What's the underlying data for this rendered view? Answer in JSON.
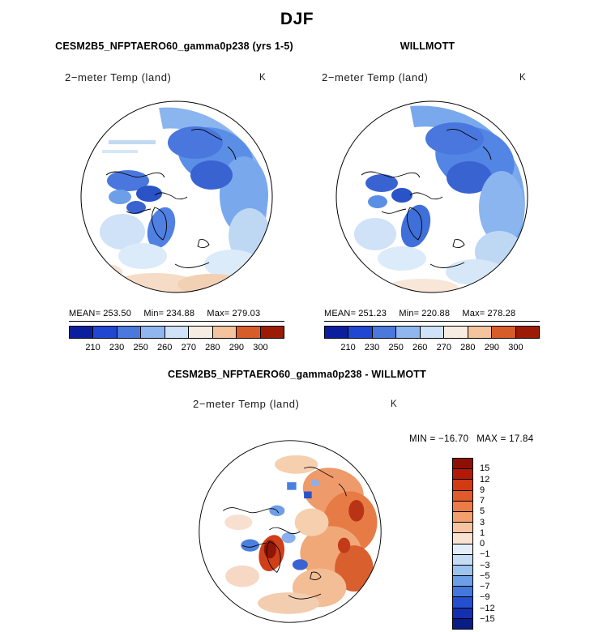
{
  "page": {
    "title": "DJF"
  },
  "model_panel": {
    "header": "CESM2B5_NFPTAERO60_gamma0p238 (yrs 1-5)",
    "subtitle": "2−meter Temp (land)",
    "units": "K",
    "mean_label": "MEAN=",
    "mean": "253.50",
    "min_label": "Min=",
    "min": "234.88",
    "max_label": "Max=",
    "max": "279.03"
  },
  "obs_panel": {
    "header": "WILLMOTT",
    "subtitle": "2−meter Temp (land)",
    "units": "K",
    "mean_label": "MEAN=",
    "mean": "251.23",
    "min_label": "Min=",
    "min": "220.88",
    "max_label": "Max=",
    "max": "278.28"
  },
  "diff_panel": {
    "header": "CESM2B5_NFPTAERO60_gamma0p238 - WILLMOTT",
    "subtitle": "2−meter Temp (land)",
    "units": "K",
    "min_label": "MIN = ",
    "min": "−16.70",
    "max_label": "MAX = ",
    "max": "17.84"
  },
  "colorbar_abs": {
    "tick_labels": [
      "210",
      "230",
      "250",
      "260",
      "270",
      "280",
      "290",
      "300"
    ],
    "colors": [
      "#0b1f9e",
      "#2146d2",
      "#4a78dd",
      "#8fb6ef",
      "#cfe2f7",
      "#f7ece1",
      "#f3c49e",
      "#d85c2a",
      "#9c1a06"
    ]
  },
  "colorbar_diff": {
    "tick_labels": [
      "15",
      "12",
      "9",
      "7",
      "5",
      "3",
      "1",
      "0",
      "−1",
      "−3",
      "−5",
      "−7",
      "−9",
      "−12",
      "−15"
    ],
    "colors": [
      "#8e0f06",
      "#b21a07",
      "#d03a14",
      "#e05a2b",
      "#ec7c47",
      "#f2a06e",
      "#f6c4a0",
      "#fae2d2",
      "#e4eefa",
      "#c6dcf5",
      "#9cc2ee",
      "#6e9fe6",
      "#4478dc",
      "#2450cf",
      "#1330ae",
      "#0a1c86"
    ]
  },
  "chart_data": [
    {
      "type": "heatmap",
      "panel": "model",
      "title": "CESM2B5_NFPTAERO60_gamma0p238 (yrs 1-5)",
      "variable": "2-meter Temp (land)",
      "units": "K",
      "season": "DJF",
      "projection": "north polar stereographic",
      "stats": {
        "mean": 253.5,
        "min": 234.88,
        "max": 279.03
      },
      "colorbar_ticks": [
        210,
        230,
        250,
        260,
        270,
        280,
        290,
        300
      ],
      "colorbar_orientation": "horizontal"
    },
    {
      "type": "heatmap",
      "panel": "observation",
      "title": "WILLMOTT",
      "variable": "2-meter Temp (land)",
      "units": "K",
      "season": "DJF",
      "projection": "north polar stereographic",
      "stats": {
        "mean": 251.23,
        "min": 220.88,
        "max": 278.28
      },
      "colorbar_ticks": [
        210,
        230,
        250,
        260,
        270,
        280,
        290,
        300
      ],
      "colorbar_orientation": "horizontal"
    },
    {
      "type": "heatmap",
      "panel": "difference",
      "title": "CESM2B5_NFPTAERO60_gamma0p238 - WILLMOTT",
      "variable": "2-meter Temp (land)",
      "units": "K",
      "season": "DJF",
      "projection": "north polar stereographic",
      "stats": {
        "min": -16.7,
        "max": 17.84
      },
      "colorbar_ticks": [
        15,
        12,
        9,
        7,
        5,
        3,
        1,
        0,
        -1,
        -3,
        -5,
        -7,
        -9,
        -12,
        -15
      ],
      "colorbar_orientation": "vertical"
    }
  ]
}
